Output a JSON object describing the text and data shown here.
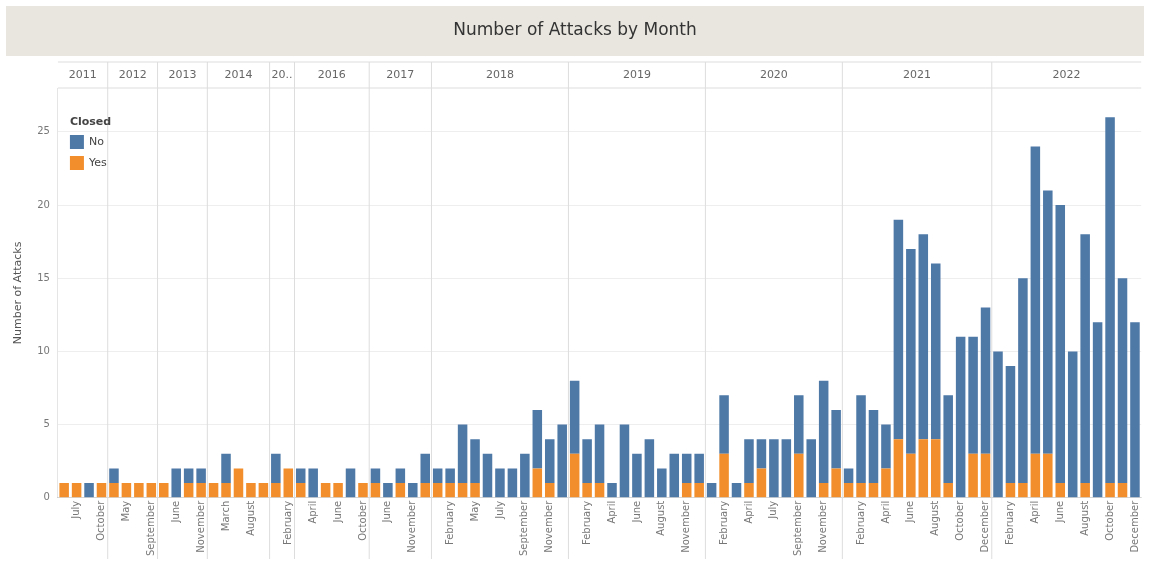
{
  "chart_data": {
    "type": "bar",
    "title": "Number of Attacks by Month",
    "ylabel": "Number of Attacks",
    "legend_title": "Closed",
    "stacked": true,
    "legend": "top left",
    "grid": "y",
    "ylim": [
      0,
      28
    ],
    "yticks": [
      0,
      5,
      10,
      15,
      20,
      25
    ],
    "categories": [
      null,
      "July",
      null,
      "October",
      null,
      "May",
      null,
      "September",
      null,
      "June",
      null,
      "November",
      null,
      "March",
      null,
      "August",
      null,
      null,
      "February",
      null,
      "April",
      null,
      "June",
      null,
      "October",
      null,
      "June",
      null,
      "November",
      null,
      null,
      "February",
      null,
      "May",
      null,
      "July",
      null,
      "September",
      null,
      "November",
      null,
      null,
      "February",
      null,
      "April",
      null,
      "June",
      null,
      "August",
      null,
      "November",
      null,
      null,
      "February",
      null,
      "April",
      null,
      "July",
      null,
      "September",
      null,
      "November",
      null,
      null,
      "February",
      null,
      "April",
      null,
      "June",
      null,
      "August",
      null,
      "October",
      null,
      "December",
      null,
      "February",
      null,
      "April",
      null,
      "June",
      null,
      "August",
      null,
      "October",
      null,
      "December"
    ],
    "series": [
      {
        "name": "Yes",
        "color": "#f28e2b",
        "values": [
          1,
          1,
          0,
          1,
          1,
          1,
          1,
          1,
          1,
          0,
          1,
          1,
          1,
          1,
          2,
          1,
          1,
          1,
          2,
          1,
          0,
          1,
          1,
          0,
          1,
          1,
          0,
          1,
          0,
          1,
          1,
          1,
          1,
          1,
          0,
          0,
          0,
          0,
          2,
          1,
          0,
          3,
          1,
          1,
          0,
          0,
          0,
          0,
          0,
          0,
          1,
          1,
          0,
          3,
          0,
          1,
          2,
          0,
          0,
          3,
          0,
          1,
          2,
          1,
          1,
          1,
          2,
          4,
          3,
          4,
          4,
          1,
          0,
          3,
          3,
          0,
          1,
          1,
          3,
          3,
          1,
          0,
          1,
          0,
          1,
          1,
          0
        ]
      },
      {
        "name": "No",
        "color": "#4e79a7",
        "values": [
          0,
          0,
          1,
          0,
          1,
          0,
          0,
          0,
          0,
          2,
          1,
          1,
          0,
          2,
          0,
          0,
          0,
          2,
          0,
          1,
          2,
          0,
          0,
          2,
          0,
          1,
          1,
          1,
          1,
          2,
          1,
          1,
          4,
          3,
          3,
          2,
          2,
          3,
          4,
          3,
          5,
          5,
          3,
          4,
          1,
          5,
          3,
          4,
          2,
          3,
          2,
          2,
          1,
          4,
          1,
          3,
          2,
          4,
          4,
          4,
          4,
          7,
          4,
          1,
          6,
          5,
          3,
          15,
          14,
          14,
          12,
          6,
          11,
          8,
          10,
          10,
          8,
          14,
          21,
          18,
          19,
          10,
          17,
          12,
          25,
          14,
          12
        ]
      }
    ],
    "annotations": [
      "2011",
      "2012",
      "2013",
      "2014",
      "20..",
      "2016",
      "2017",
      "2018",
      "2019",
      "2020",
      "2021",
      "2022"
    ]
  }
}
